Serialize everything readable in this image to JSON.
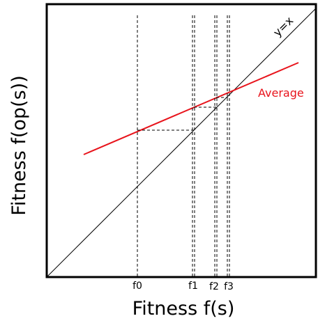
{
  "diagram": {
    "xlabel": "Fitness f(s)",
    "ylabel": "Fitness f(op(s))",
    "identity_label": "y=x",
    "average_label": "Average",
    "ticks": [
      "f0",
      "f1",
      "f2",
      "f3"
    ],
    "colors": {
      "frame": "#000000",
      "identity": "#000000",
      "average": "#e8141c",
      "dashed": "#000000",
      "average_label": "#e8141c"
    }
  }
}
